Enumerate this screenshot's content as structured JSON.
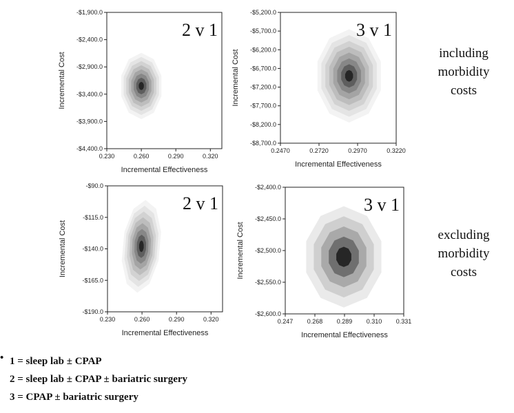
{
  "side_labels": {
    "top": "including\nmorbidity\ncosts",
    "bottom": "excluding\nmorbidity\ncosts"
  },
  "legend": {
    "items": [
      "1 = sleep lab ± CPAP",
      "2 = sleep lab ± CPAP ± bariatric surgery",
      "3 = CPAP ± bariatric surgery"
    ]
  },
  "chart_data": [
    {
      "type": "contour",
      "panel_label": "2 v 1",
      "xlabel": "Incremental Effectiveness",
      "ylabel": "Incremental Cost",
      "xlim": [
        0.23,
        0.33
      ],
      "ylim": [
        -4400,
        -1900
      ],
      "x_ticks": [
        "0.230",
        "0.260",
        "0.290",
        "0.320"
      ],
      "x_tick_values": [
        0.23,
        0.26,
        0.29,
        0.32
      ],
      "y_ticks": [
        "-$1,900.0",
        "-$2,400.0",
        "-$2,900.0",
        "-$3,400.0",
        "-$3,900.0",
        "-$4,400.0"
      ],
      "y_tick_values": [
        -1900,
        -2400,
        -2900,
        -3400,
        -3900,
        -4400
      ],
      "center": [
        0.26,
        -3250
      ],
      "spread": [
        0.0115,
        380
      ],
      "tilt": 0,
      "levels": 8,
      "level_colors": [
        "#f3f3f3",
        "#e4e4e4",
        "#d2d2d2",
        "#bdbdbd",
        "#a4a4a4",
        "#878787",
        "#5e5e5e",
        "#262626"
      ]
    },
    {
      "type": "contour",
      "panel_label": "3 v 1",
      "xlabel": "Incremental Effectiveness",
      "ylabel": "Incremental Cost",
      "xlim": [
        0.247,
        0.322
      ],
      "ylim": [
        -8700,
        -5200
      ],
      "x_ticks": [
        "0.2470",
        "0.2720",
        "0.2970",
        "0.3220"
      ],
      "x_tick_values": [
        0.247,
        0.272,
        0.297,
        0.322
      ],
      "y_ticks": [
        "-$5,200.0",
        "-$5,700.0",
        "-$6,200.0",
        "-$6,700.0",
        "-$7,200.0",
        "-$7,700.0",
        "-$8,200.0",
        "-$8,700.0"
      ],
      "y_tick_values": [
        -5200,
        -5700,
        -6200,
        -6700,
        -7200,
        -7700,
        -8200,
        -8700
      ],
      "center": [
        0.2915,
        -6900
      ],
      "spread": [
        0.0135,
        780
      ],
      "tilt": 0,
      "levels": 8,
      "level_colors": [
        "#f3f3f3",
        "#e4e4e4",
        "#d2d2d2",
        "#bdbdbd",
        "#a4a4a4",
        "#878787",
        "#5e5e5e",
        "#262626"
      ]
    },
    {
      "type": "contour",
      "panel_label": "2 v 1",
      "xlabel": "Incremental Effectiveness",
      "ylabel": "Incremental Cost",
      "xlim": [
        0.23,
        0.33
      ],
      "ylim": [
        -190,
        -90
      ],
      "x_ticks": [
        "0.230",
        "0.260",
        "0.290",
        "0.320"
      ],
      "x_tick_values": [
        0.23,
        0.26,
        0.29,
        0.32
      ],
      "y_ticks": [
        "-$90.0",
        "-$115.0",
        "-$140.0",
        "-$165.0",
        "-$190.0"
      ],
      "y_tick_values": [
        -90,
        -115,
        -140,
        -165,
        -190
      ],
      "center": [
        0.2595,
        -138
      ],
      "spread": [
        0.0105,
        23
      ],
      "tilt": -0.3,
      "levels": 8,
      "level_colors": [
        "#f3f3f3",
        "#e4e4e4",
        "#d2d2d2",
        "#bdbdbd",
        "#a4a4a4",
        "#878787",
        "#5e5e5e",
        "#262626"
      ]
    },
    {
      "type": "contour",
      "panel_label": "3 v 1",
      "xlabel": "Incremental Effectiveness",
      "ylabel": "Incremental Cost",
      "xlim": [
        0.247,
        0.331
      ],
      "ylim": [
        -2600,
        -2400
      ],
      "x_ticks": [
        "0.247",
        "0.268",
        "0.289",
        "0.310",
        "0.331"
      ],
      "x_tick_values": [
        0.247,
        0.268,
        0.289,
        0.31,
        0.331
      ],
      "y_ticks": [
        "-$2,400.0",
        "-$2,450.0",
        "-$2,500.0",
        "-$2,550.0",
        "-$2,600.0"
      ],
      "y_tick_values": [
        -2400,
        -2450,
        -2500,
        -2550,
        -2600
      ],
      "center": [
        0.2885,
        -2510
      ],
      "spread": [
        0.0175,
        50
      ],
      "tilt": 0,
      "levels": 5,
      "level_colors": [
        "#eaeaea",
        "#cfcfcf",
        "#a9a9a9",
        "#6f6f6f",
        "#262626"
      ]
    }
  ]
}
